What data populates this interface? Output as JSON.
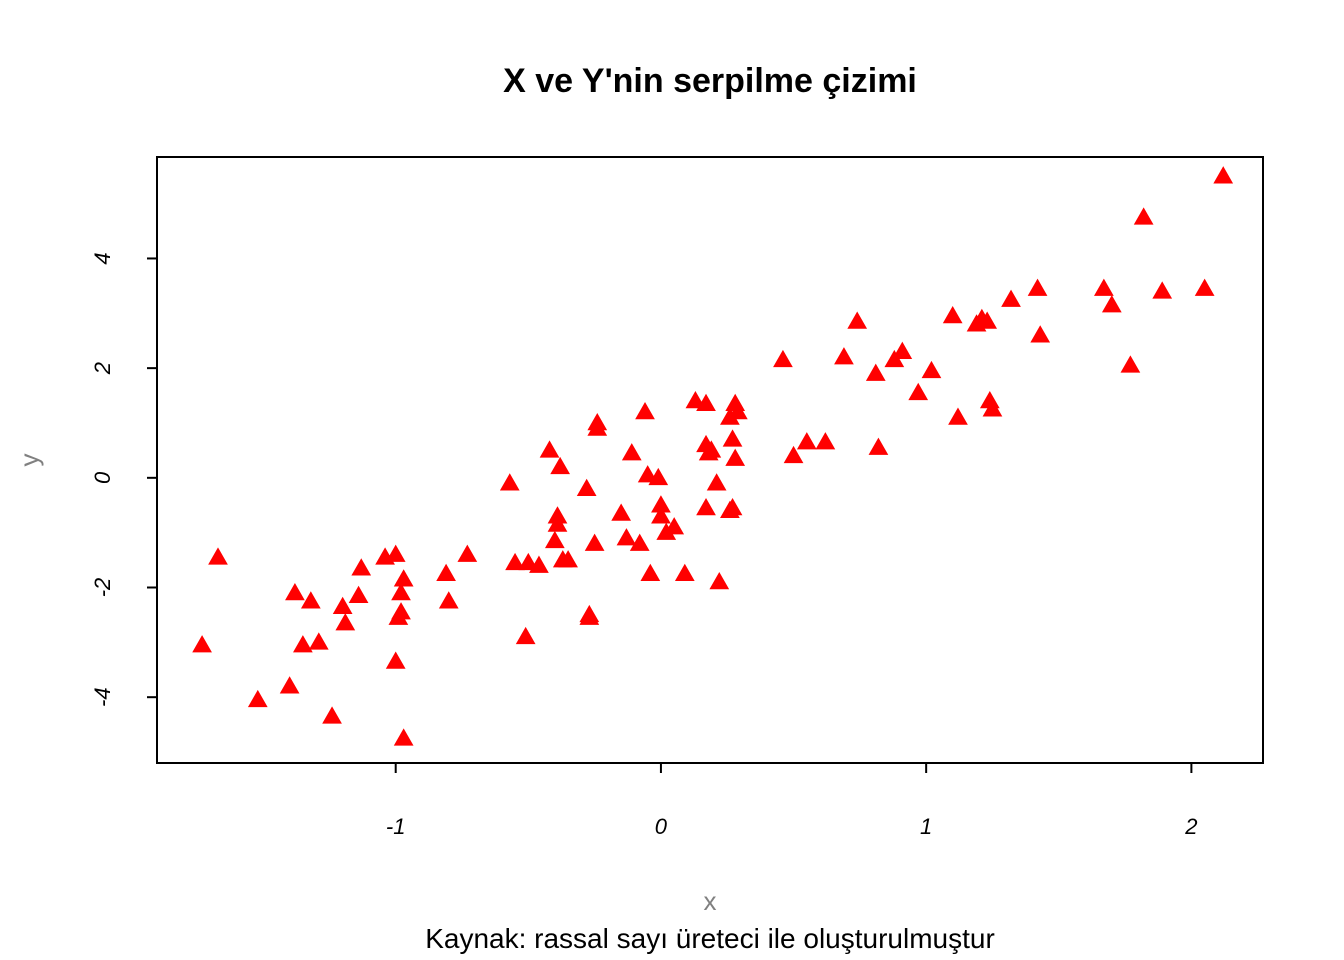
{
  "chart_data": {
    "type": "scatter",
    "title": "X ve Y'nin serpilme çizimi",
    "xlabel": "x",
    "ylabel": "y",
    "caption": "Kaynak: rassal sayı üreteci ile oluşturulmuştur",
    "xlim": [
      -1.9,
      2.27
    ],
    "ylim": [
      -5.2,
      5.85
    ],
    "x_ticks": [
      -1,
      0,
      1,
      2
    ],
    "y_ticks": [
      -4,
      -2,
      0,
      2,
      4
    ],
    "x_tick_labels": [
      "-1",
      "0",
      "1",
      "2"
    ],
    "y_tick_labels": [
      "-4",
      "-2",
      "0",
      "2",
      "4"
    ],
    "grid": false,
    "marker": "filled-triangle",
    "point_color": "#ff0000",
    "x": [
      -1.73,
      -1.67,
      -1.52,
      -1.4,
      -1.38,
      -1.35,
      -1.32,
      -1.29,
      -1.24,
      -1.2,
      -1.19,
      -1.14,
      -1.13,
      -1.04,
      -1.0,
      -1.0,
      -0.99,
      -0.98,
      -0.98,
      -0.97,
      -0.97,
      -0.81,
      -0.8,
      -0.73,
      -0.57,
      -0.55,
      -0.5,
      -0.51,
      -0.46,
      -0.42,
      -0.39,
      -0.4,
      -0.39,
      -0.38,
      -0.37,
      -0.35,
      -0.28,
      -0.27,
      -0.27,
      -0.25,
      -0.24,
      -0.24,
      -0.15,
      -0.13,
      -0.11,
      -0.08,
      -0.06,
      -0.05,
      -0.04,
      0.0,
      -0.01,
      0.0,
      0.02,
      0.05,
      0.09,
      0.13,
      0.17,
      0.17,
      0.17,
      0.18,
      0.19,
      0.21,
      0.22,
      0.26,
      0.26,
      0.27,
      0.27,
      0.28,
      0.28,
      0.29,
      0.46,
      0.5,
      0.55,
      0.62,
      0.69,
      0.74,
      0.81,
      0.82,
      0.88,
      0.91,
      0.97,
      1.02,
      1.1,
      1.12,
      1.19,
      1.21,
      1.23,
      1.24,
      1.25,
      1.32,
      1.42,
      1.43,
      1.67,
      1.7,
      1.77,
      1.82,
      1.89,
      2.05,
      2.12
    ],
    "y": [
      -3.05,
      -1.45,
      -4.05,
      -3.8,
      -2.1,
      -3.05,
      -2.25,
      -3.0,
      -4.35,
      -2.35,
      -2.65,
      -2.15,
      -1.65,
      -1.45,
      -1.4,
      -3.35,
      -2.55,
      -2.45,
      -2.1,
      -1.85,
      -4.75,
      -1.75,
      -2.25,
      -1.4,
      -0.1,
      -1.55,
      -1.55,
      -2.9,
      -1.6,
      0.5,
      -0.7,
      -1.15,
      -0.85,
      0.2,
      -1.5,
      -1.5,
      -0.2,
      -2.5,
      -2.55,
      -1.2,
      0.9,
      1.0,
      -0.65,
      -1.1,
      0.45,
      -1.2,
      1.2,
      0.05,
      -1.75,
      -0.5,
      0.0,
      -0.7,
      -1.0,
      -0.9,
      -1.75,
      1.4,
      1.35,
      0.6,
      -0.55,
      0.45,
      0.5,
      -0.1,
      -1.9,
      1.1,
      -0.6,
      0.7,
      -0.55,
      0.35,
      1.35,
      1.2,
      2.15,
      0.4,
      0.65,
      0.65,
      2.2,
      2.85,
      1.9,
      0.55,
      2.15,
      2.3,
      1.55,
      1.95,
      2.95,
      1.1,
      2.8,
      2.9,
      2.85,
      1.4,
      1.25,
      3.25,
      3.45,
      2.6,
      3.45,
      3.15,
      2.05,
      4.75,
      3.4,
      3.45,
      5.5
    ]
  }
}
